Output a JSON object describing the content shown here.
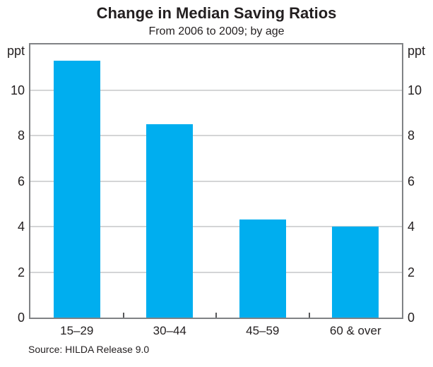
{
  "header": {
    "title": "Change in Median Saving Ratios",
    "subtitle": "From 2006 to 2009; by age"
  },
  "axes": {
    "unit_left": "ppt",
    "unit_right": "ppt"
  },
  "footer": {
    "source": "Source: HILDA Release 9.0"
  },
  "colors": {
    "bar": "#00aeef",
    "gridline": "#d4d5d6",
    "frame": "#808285",
    "text": "#231f20"
  },
  "chart_data": {
    "type": "bar",
    "title": "Change in Median Saving Ratios",
    "subtitle": "From 2006 to 2009; by age",
    "categories": [
      "15–29",
      "30–44",
      "45–59",
      "60 & over"
    ],
    "values": [
      11.3,
      8.5,
      4.3,
      4.0
    ],
    "xlabel": "",
    "ylabel": "ppt",
    "ylabel_position": "both-sides-top",
    "ylim": [
      0,
      12
    ],
    "yticks": [
      0,
      2,
      4,
      6,
      8,
      10
    ],
    "grid": true,
    "legend": false,
    "bar_color": "#00aeef",
    "source": "Source: HILDA Release 9.0"
  }
}
